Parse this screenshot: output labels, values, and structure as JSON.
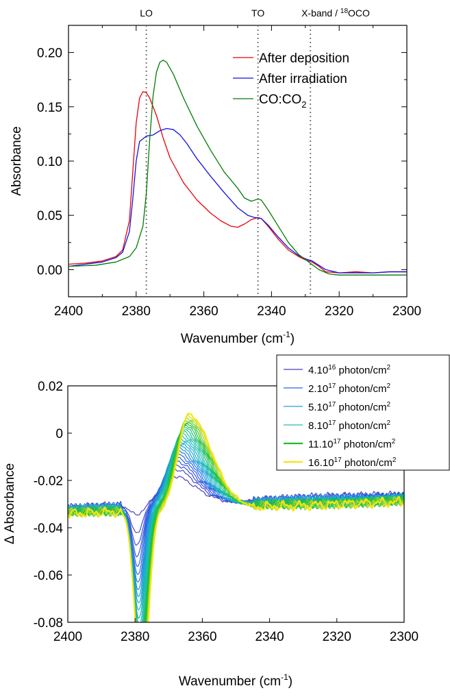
{
  "chart_data": [
    {
      "type": "line",
      "xlabel": "Wavenumber (cm",
      "xlabel_sup": "-1",
      "xlabel_end": ")",
      "ylabel": "Absorbance",
      "xlim": [
        2400,
        2300
      ],
      "ylim": [
        -0.025,
        0.225
      ],
      "x_ticks": [
        2400,
        2380,
        2360,
        2340,
        2320,
        2300
      ],
      "x_tick_labels": [
        "2400",
        "2380",
        "2360",
        "2340",
        "2320",
        "2300"
      ],
      "y_ticks": [
        0.0,
        0.05,
        0.1,
        0.15,
        0.2
      ],
      "y_tick_labels": [
        "0.00",
        "0.05",
        "0.10",
        "0.15",
        "0.20"
      ],
      "legend_position": "top-right",
      "annotations": [
        {
          "x": 2377,
          "label": "LO"
        },
        {
          "x": 2344,
          "label": "TO"
        },
        {
          "x": 2328.5,
          "label": "X-band / ",
          "sup": "18",
          "label_end": "OCO"
        }
      ],
      "series": [
        {
          "name": "After deposition",
          "color": "#e8000b",
          "x": [
            2400,
            2395,
            2390,
            2386,
            2384,
            2382,
            2381,
            2380,
            2379,
            2378,
            2377,
            2376,
            2374,
            2372,
            2370,
            2366,
            2362,
            2358,
            2355,
            2352,
            2350,
            2348,
            2346,
            2344,
            2343,
            2341,
            2338,
            2335,
            2332,
            2330,
            2328,
            2326,
            2324,
            2320,
            2315,
            2310,
            2305,
            2300
          ],
          "values": [
            0.005,
            0.006,
            0.008,
            0.012,
            0.018,
            0.045,
            0.09,
            0.135,
            0.158,
            0.164,
            0.163,
            0.158,
            0.142,
            0.121,
            0.103,
            0.08,
            0.064,
            0.052,
            0.045,
            0.04,
            0.039,
            0.042,
            0.046,
            0.048,
            0.047,
            0.04,
            0.028,
            0.018,
            0.012,
            0.009,
            0.007,
            0.003,
            -0.002,
            -0.003,
            -0.002,
            -0.003,
            -0.002,
            -0.002
          ]
        },
        {
          "name": "After irradiation",
          "color": "#1010e0",
          "x": [
            2400,
            2395,
            2390,
            2386,
            2384,
            2382,
            2381,
            2380,
            2379,
            2377,
            2375,
            2373,
            2371,
            2369,
            2367,
            2365,
            2362,
            2358,
            2354,
            2350,
            2347,
            2345,
            2343,
            2341,
            2338,
            2335,
            2332,
            2330,
            2328,
            2326,
            2324,
            2320,
            2315,
            2310,
            2305,
            2300
          ],
          "values": [
            0.003,
            0.005,
            0.007,
            0.011,
            0.016,
            0.035,
            0.065,
            0.1,
            0.118,
            0.123,
            0.124,
            0.128,
            0.13,
            0.129,
            0.124,
            0.116,
            0.102,
            0.086,
            0.071,
            0.057,
            0.05,
            0.048,
            0.047,
            0.041,
            0.03,
            0.02,
            0.013,
            0.01,
            0.008,
            0.004,
            0.0,
            -0.003,
            -0.003,
            -0.003,
            -0.002,
            -0.002
          ]
        },
        {
          "name": "CO:CO2",
          "label_main": "CO:CO",
          "label_sub": "2",
          "color": "#007a00",
          "x": [
            2400,
            2392,
            2386,
            2382,
            2380,
            2378,
            2377,
            2376,
            2375,
            2374,
            2373,
            2372,
            2371,
            2369,
            2366,
            2362,
            2358,
            2354,
            2350,
            2348,
            2346,
            2344,
            2343,
            2341,
            2338,
            2335,
            2332,
            2329,
            2326,
            2323,
            2320,
            2315,
            2310,
            2305,
            2300
          ],
          "values": [
            0.003,
            0.004,
            0.007,
            0.012,
            0.02,
            0.04,
            0.07,
            0.12,
            0.16,
            0.182,
            0.191,
            0.193,
            0.191,
            0.18,
            0.158,
            0.132,
            0.11,
            0.09,
            0.075,
            0.066,
            0.063,
            0.065,
            0.064,
            0.055,
            0.04,
            0.025,
            0.014,
            0.007,
            0.0,
            -0.004,
            -0.005,
            -0.005,
            -0.005,
            -0.005,
            -0.005
          ]
        }
      ]
    },
    {
      "type": "line",
      "xlabel": "Wavenumber (cm",
      "xlabel_sup": "-1",
      "xlabel_end": ")",
      "ylabel": "Δ Absorbance",
      "xlim": [
        2400,
        2300
      ],
      "ylim": [
        -0.08,
        0.02
      ],
      "x_ticks": [
        2400,
        2380,
        2360,
        2340,
        2320,
        2300
      ],
      "x_tick_labels": [
        "2400",
        "2380",
        "2360",
        "2340",
        "2320",
        "2300"
      ],
      "y_ticks": [
        0.02,
        0.0,
        -0.02,
        -0.04,
        -0.06,
        -0.08
      ],
      "y_tick_labels": [
        "0.02",
        "0",
        "-0.02",
        "-0.04",
        "-0.06",
        "-0.08"
      ],
      "legend_position": "top-right",
      "n_curves": 24,
      "curve_parameters": {
        "dip_depth": [
          -0.004,
          -0.075
        ],
        "peak_height": [
          0.012,
          0.04
        ],
        "dip_center": [
          2379.5,
          2378
        ],
        "peak_center": [
          2369,
          2364
        ],
        "baseline_start": [
          -0.032,
          -0.034
        ],
        "baseline_end": [
          -0.026,
          -0.029
        ]
      },
      "series": [
        {
          "name": "4.10^16 photon/cm^2",
          "label_base": "4.10",
          "label_exp": "16",
          "label_unit": " photon/cm",
          "label_unit_exp": "2",
          "color": "#4b3fc4",
          "dose_photon_per_cm2": 4e+16
        },
        {
          "name": "2.10^17 photon/cm^2",
          "label_base": "2.10",
          "label_exp": "17",
          "label_unit": " photon/cm",
          "label_unit_exp": "2",
          "color": "#2a62e8",
          "dose_photon_per_cm2": 2e+17
        },
        {
          "name": "5.10^17 photon/cm^2",
          "label_base": "5.10",
          "label_exp": "17",
          "label_unit": " photon/cm",
          "label_unit_exp": "2",
          "color": "#14a8d4",
          "dose_photon_per_cm2": 5e+17
        },
        {
          "name": "8.10^17 photon/cm^2",
          "label_base": "8.10",
          "label_exp": "17",
          "label_unit": " photon/cm",
          "label_unit_exp": "2",
          "color": "#1fc0a6",
          "dose_photon_per_cm2": 8e+17
        },
        {
          "name": "11.10^17 photon/cm^2",
          "label_base": "11.10",
          "label_exp": "17",
          "label_unit": " photon/cm",
          "label_unit_exp": "2",
          "color": "#1bbe2a",
          "dose_photon_per_cm2": 1.1e+18
        },
        {
          "name": "16.10^17 photon/cm^2",
          "label_base": "16.10",
          "label_exp": "17",
          "label_unit": " photon/cm",
          "label_unit_exp": "2",
          "color": "#f5e50f",
          "dose_photon_per_cm2": 1.6e+18
        }
      ]
    }
  ]
}
